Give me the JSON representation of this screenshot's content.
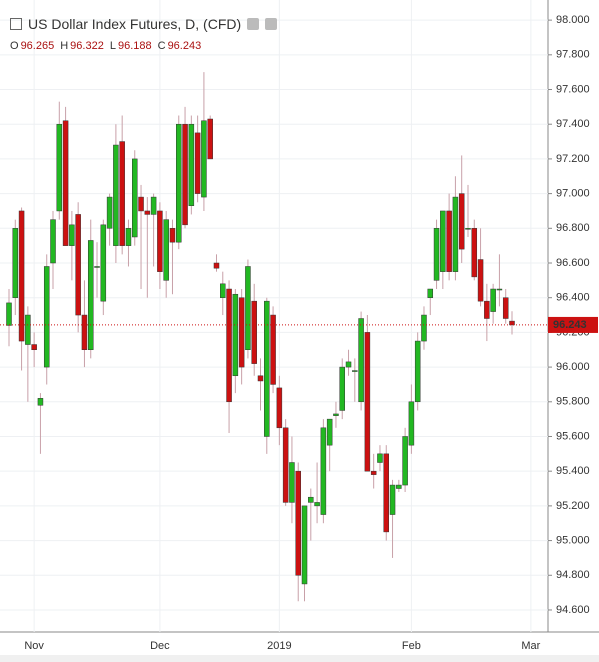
{
  "chart_data": {
    "type": "candlestick",
    "title": "US Dollar Index Futures, D, (CFD)",
    "ohlc_header": [
      {
        "label": "O",
        "value": "96.265"
      },
      {
        "label": "H",
        "value": "96.322"
      },
      {
        "label": "L",
        "value": "96.188"
      },
      {
        "label": "C",
        "value": "96.243"
      }
    ],
    "categories": [
      null,
      null,
      null,
      null,
      "Nov",
      null,
      null,
      null,
      null,
      null,
      null,
      null,
      null,
      null,
      null,
      null,
      null,
      null,
      null,
      null,
      null,
      null,
      null,
      null,
      "Dec",
      null,
      null,
      null,
      null,
      null,
      null,
      null,
      null,
      null,
      null,
      null,
      null,
      null,
      null,
      null,
      null,
      null,
      null,
      "2019",
      null,
      null,
      null,
      null,
      null,
      null,
      null,
      null,
      null,
      null,
      null,
      null,
      null,
      null,
      null,
      null,
      null,
      null,
      null,
      null,
      "Feb",
      null,
      null,
      null,
      null,
      null,
      null,
      null,
      null,
      null,
      null,
      null,
      null,
      null,
      null,
      null,
      null,
      null,
      null,
      "Mar"
    ],
    "open": [
      96.24,
      96.4,
      96.9,
      96.13,
      96.13,
      95.78,
      96.0,
      96.6,
      96.9,
      97.42,
      96.7,
      96.88,
      96.3,
      96.1,
      96.58,
      96.38,
      96.8,
      96.7,
      97.3,
      96.7,
      96.75,
      96.98,
      96.9,
      96.88,
      96.9,
      96.5,
      96.8,
      96.72,
      97.4,
      96.93,
      97.35,
      96.98,
      97.43,
      96.6,
      96.4,
      96.45,
      95.95,
      96.4,
      96.1,
      96.38,
      95.95,
      95.6,
      96.3,
      95.88,
      95.65,
      95.22,
      95.4,
      94.75,
      95.22,
      95.2,
      95.15,
      95.55,
      95.72,
      95.75,
      96.0,
      95.98,
      95.8,
      96.2,
      95.4,
      95.45,
      95.5,
      95.15,
      95.3,
      95.32,
      95.55,
      95.8,
      96.15,
      96.4,
      96.5,
      96.55,
      96.9,
      96.55,
      97.0,
      96.8,
      96.8,
      96.62,
      96.38,
      96.32,
      96.45,
      96.4,
      96.265,
      null,
      null,
      null
    ],
    "high": [
      96.45,
      96.85,
      96.92,
      96.35,
      96.2,
      95.85,
      96.65,
      96.9,
      97.53,
      97.5,
      96.9,
      96.95,
      96.5,
      96.85,
      96.72,
      96.85,
      97.0,
      97.4,
      97.45,
      96.85,
      97.25,
      97.05,
      96.98,
      97.0,
      96.95,
      96.9,
      96.85,
      97.45,
      97.5,
      97.45,
      97.45,
      97.7,
      97.45,
      96.65,
      96.55,
      96.5,
      96.45,
      96.45,
      96.62,
      96.48,
      96.05,
      96.4,
      96.35,
      95.95,
      95.7,
      95.6,
      95.45,
      95.2,
      95.3,
      95.45,
      95.7,
      95.7,
      95.8,
      96.05,
      96.1,
      96.05,
      96.32,
      96.3,
      95.5,
      95.55,
      95.55,
      95.35,
      95.35,
      95.65,
      95.9,
      96.2,
      96.35,
      96.45,
      96.85,
      96.9,
      97.0,
      97.1,
      97.22,
      97.05,
      96.85,
      96.8,
      96.48,
      96.48,
      96.65,
      96.45,
      96.322,
      null,
      null,
      null
    ],
    "low": [
      96.12,
      96.3,
      95.98,
      95.8,
      96.0,
      95.5,
      95.9,
      96.45,
      96.85,
      96.7,
      96.5,
      96.2,
      96.0,
      96.05,
      96.4,
      96.3,
      96.7,
      96.6,
      96.65,
      96.58,
      96.7,
      96.45,
      96.4,
      96.58,
      96.45,
      96.4,
      96.42,
      96.68,
      96.8,
      96.88,
      96.95,
      96.9,
      97.2,
      96.55,
      96.3,
      95.62,
      95.85,
      95.9,
      96.05,
      95.95,
      95.75,
      95.5,
      95.85,
      95.55,
      95.2,
      95.1,
      94.65,
      94.65,
      95.0,
      95.1,
      95.1,
      95.4,
      95.65,
      95.7,
      95.95,
      95.8,
      95.75,
      95.4,
      95.3,
      95.4,
      95.0,
      94.9,
      95.28,
      95.28,
      95.5,
      95.75,
      96.1,
      96.3,
      96.45,
      96.45,
      96.5,
      96.5,
      96.6,
      96.75,
      96.5,
      96.35,
      96.15,
      96.25,
      96.35,
      96.25,
      96.188,
      null,
      null,
      null
    ],
    "close": [
      96.37,
      96.8,
      96.15,
      96.3,
      96.1,
      95.82,
      96.58,
      96.85,
      97.4,
      96.7,
      96.82,
      96.3,
      96.1,
      96.73,
      96.58,
      96.82,
      96.98,
      97.28,
      96.7,
      96.8,
      97.2,
      96.9,
      96.88,
      96.98,
      96.55,
      96.85,
      96.72,
      97.4,
      96.82,
      97.4,
      97.0,
      97.42,
      97.2,
      96.57,
      96.48,
      95.8,
      96.42,
      96.0,
      96.58,
      96.02,
      95.92,
      96.38,
      95.9,
      95.65,
      95.22,
      95.45,
      94.8,
      95.2,
      95.25,
      95.22,
      95.65,
      95.7,
      95.73,
      96.0,
      96.03,
      95.98,
      96.28,
      95.4,
      95.38,
      95.5,
      95.05,
      95.32,
      95.32,
      95.6,
      95.8,
      96.15,
      96.3,
      96.45,
      96.8,
      96.9,
      96.55,
      96.98,
      96.68,
      96.8,
      96.52,
      96.38,
      96.28,
      96.45,
      96.45,
      96.28,
      96.243,
      null,
      null,
      null
    ],
    "up_color": "#22b822",
    "down_color": "#cc1111",
    "last_price": {
      "value": 96.243,
      "label": "96.243"
    },
    "ylim": [
      94.473,
      98.116
    ],
    "yticks": [
      {
        "value": 94.6,
        "label": "94.600"
      },
      {
        "value": 94.8,
        "label": "94.800"
      },
      {
        "value": 95.0,
        "label": "95.000"
      },
      {
        "value": 95.2,
        "label": "95.200"
      },
      {
        "value": 95.4,
        "label": "95.400"
      },
      {
        "value": 95.6,
        "label": "95.600"
      },
      {
        "value": 95.8,
        "label": "95.800"
      },
      {
        "value": 96.0,
        "label": "96.000"
      },
      {
        "value": 96.2,
        "label": "96.200"
      },
      {
        "value": 96.4,
        "label": "96.400"
      },
      {
        "value": 96.6,
        "label": "96.600"
      },
      {
        "value": 96.8,
        "label": "96.800"
      },
      {
        "value": 97.0,
        "label": "97.000"
      },
      {
        "value": 97.2,
        "label": "97.200"
      },
      {
        "value": 97.4,
        "label": "97.400"
      },
      {
        "value": 97.6,
        "label": "97.600"
      },
      {
        "value": 97.8,
        "label": "97.800"
      },
      {
        "value": 98.0,
        "label": "98.000"
      }
    ],
    "grid": true
  }
}
